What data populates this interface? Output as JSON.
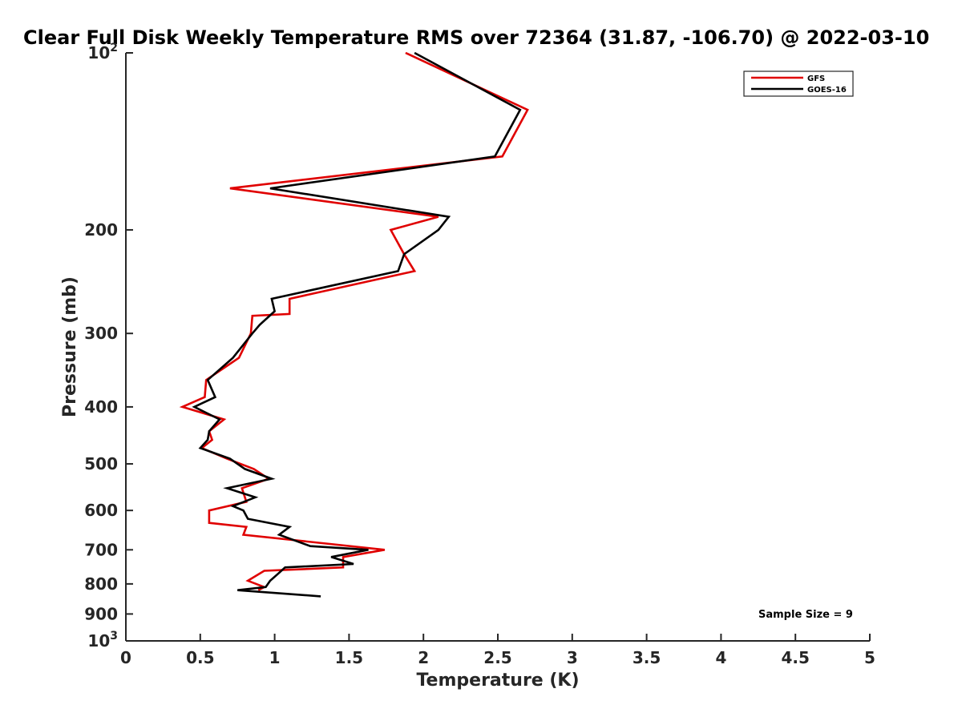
{
  "chart_data": {
    "type": "line",
    "title": "Clear Full Disk Weekly Temperature RMS over 72364 (31.87, -106.70) @ 2022-03-10",
    "xlabel": "Temperature (K)",
    "ylabel": "Pressure (mb)",
    "xlim": [
      0,
      5
    ],
    "ylim": [
      1000,
      100
    ],
    "yscale": "log",
    "grid": false,
    "legend_position": "top-right",
    "x_ticks": [
      "0",
      "0.5",
      "1",
      "1.5",
      "2",
      "2.5",
      "3",
      "3.5",
      "4",
      "4.5",
      "5"
    ],
    "y_ticks": [
      {
        "value": 100,
        "base": "10",
        "exp": "2"
      },
      {
        "value": 200,
        "label": "200"
      },
      {
        "value": 300,
        "label": "300"
      },
      {
        "value": 400,
        "label": "400"
      },
      {
        "value": 500,
        "label": "500"
      },
      {
        "value": 600,
        "label": "600"
      },
      {
        "value": 700,
        "label": "700"
      },
      {
        "value": 800,
        "label": "800"
      },
      {
        "value": 900,
        "label": "900"
      },
      {
        "value": 1000,
        "base": "10",
        "exp": "3"
      }
    ],
    "annotation": "Sample Size = 9",
    "series": [
      {
        "name": "GFS",
        "color": "#e00000",
        "points": [
          [
            1.88,
            100
          ],
          [
            2.7,
            125
          ],
          [
            2.53,
            150
          ],
          [
            0.7,
            170
          ],
          [
            2.1,
            190
          ],
          [
            1.78,
            200
          ],
          [
            1.87,
            220
          ],
          [
            1.94,
            235
          ],
          [
            1.1,
            262
          ],
          [
            1.1,
            278
          ],
          [
            0.85,
            280
          ],
          [
            0.84,
            300
          ],
          [
            0.76,
            330
          ],
          [
            0.54,
            360
          ],
          [
            0.53,
            385
          ],
          [
            0.38,
            400
          ],
          [
            0.66,
            420
          ],
          [
            0.56,
            440
          ],
          [
            0.58,
            455
          ],
          [
            0.51,
            470
          ],
          [
            0.68,
            490
          ],
          [
            0.86,
            510
          ],
          [
            0.96,
            530
          ],
          [
            0.78,
            550
          ],
          [
            0.81,
            580
          ],
          [
            0.56,
            600
          ],
          [
            0.56,
            630
          ],
          [
            0.81,
            640
          ],
          [
            0.79,
            660
          ],
          [
            1.74,
            700
          ],
          [
            1.46,
            720
          ],
          [
            1.46,
            750
          ],
          [
            0.93,
            760
          ],
          [
            0.82,
            790
          ],
          [
            0.93,
            810
          ],
          [
            0.89,
            820
          ]
        ]
      },
      {
        "name": "GOES-16",
        "color": "#000000",
        "points": [
          [
            1.94,
            100
          ],
          [
            2.65,
            125
          ],
          [
            2.48,
            150
          ],
          [
            0.97,
            170
          ],
          [
            2.17,
            190
          ],
          [
            2.1,
            200
          ],
          [
            1.87,
            220
          ],
          [
            1.83,
            235
          ],
          [
            0.98,
            262
          ],
          [
            1.0,
            275
          ],
          [
            0.9,
            290
          ],
          [
            0.85,
            300
          ],
          [
            0.72,
            330
          ],
          [
            0.55,
            360
          ],
          [
            0.6,
            385
          ],
          [
            0.46,
            400
          ],
          [
            0.63,
            420
          ],
          [
            0.56,
            440
          ],
          [
            0.55,
            455
          ],
          [
            0.5,
            470
          ],
          [
            0.7,
            490
          ],
          [
            0.8,
            510
          ],
          [
            0.98,
            530
          ],
          [
            0.68,
            550
          ],
          [
            0.87,
            570
          ],
          [
            0.72,
            590
          ],
          [
            0.79,
            600
          ],
          [
            0.82,
            620
          ],
          [
            1.1,
            640
          ],
          [
            1.03,
            660
          ],
          [
            1.24,
            690
          ],
          [
            1.63,
            700
          ],
          [
            1.38,
            720
          ],
          [
            1.53,
            740
          ],
          [
            1.07,
            750
          ],
          [
            1.02,
            770
          ],
          [
            0.97,
            790
          ],
          [
            0.94,
            810
          ],
          [
            0.75,
            820
          ],
          [
            1.31,
            840
          ]
        ]
      }
    ]
  }
}
